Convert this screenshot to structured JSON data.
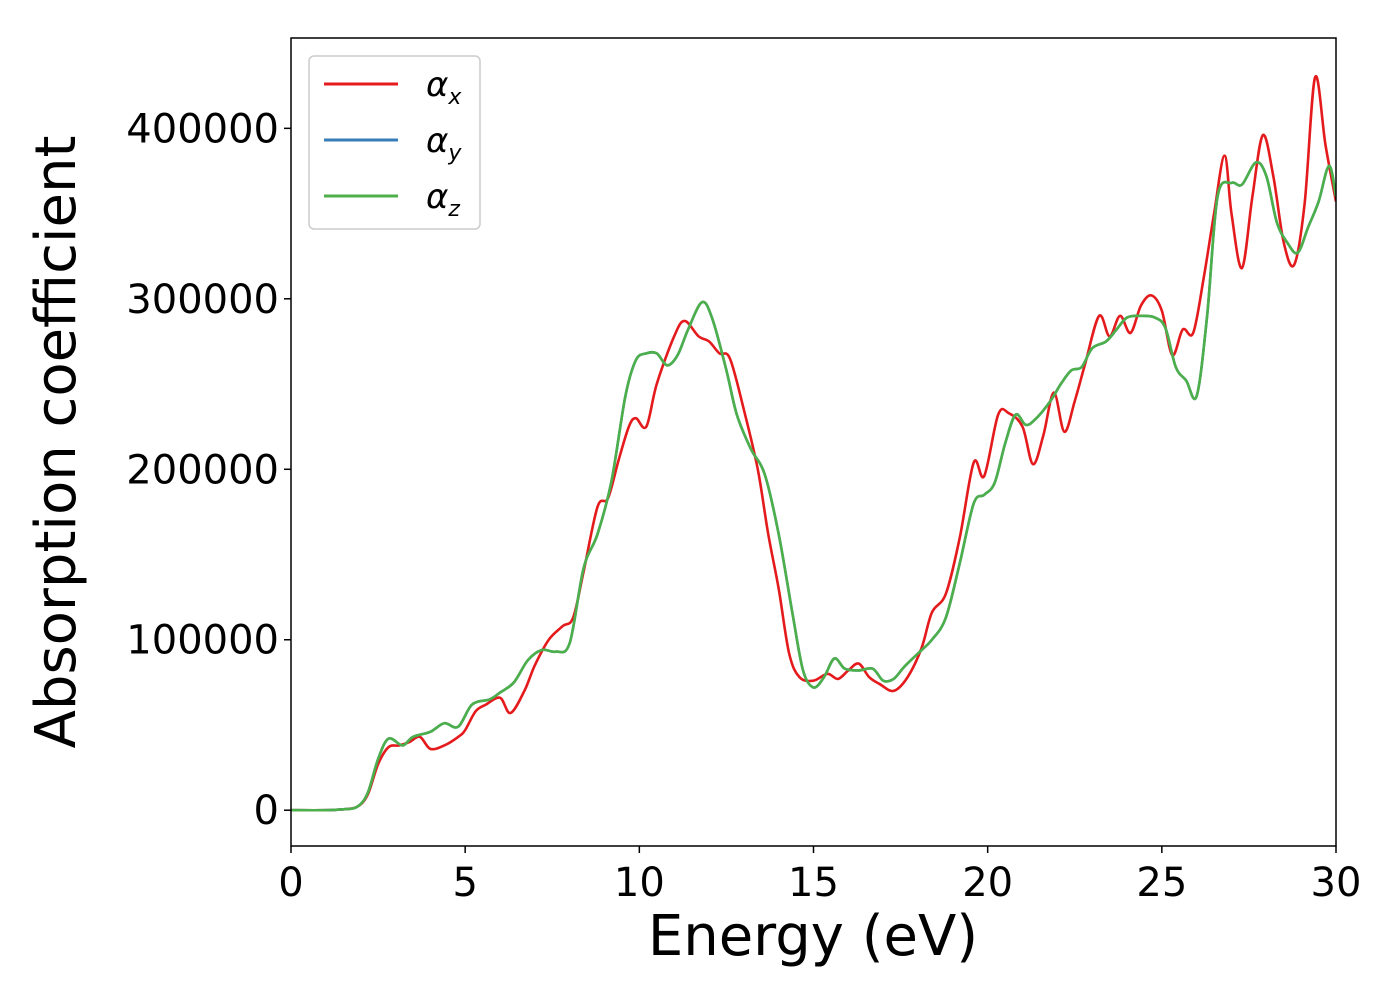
{
  "chart_data": {
    "type": "line",
    "xlabel": "Energy (eV)",
    "ylabel": "Absorption coefficient",
    "xlim": [
      0,
      30
    ],
    "ylim": [
      -21000,
      453000
    ],
    "xticks": [
      0,
      5,
      10,
      15,
      20,
      25,
      30
    ],
    "xtick_labels": [
      "0",
      "5",
      "10",
      "15",
      "20",
      "25",
      "30"
    ],
    "yticks": [
      0,
      100000,
      200000,
      300000,
      400000
    ],
    "ytick_labels": [
      "0",
      "100000",
      "200000",
      "300000",
      "400000"
    ],
    "grid": false,
    "legend_position": "top-left",
    "series": [
      {
        "name": "α",
        "subscript": "x",
        "color": "#e41a1c",
        "points": [
          [
            0,
            0
          ],
          [
            1,
            0
          ],
          [
            1.5,
            500
          ],
          [
            1.9,
            2000
          ],
          [
            2.2,
            9000
          ],
          [
            2.5,
            27000
          ],
          [
            2.8,
            37000
          ],
          [
            3.1,
            38000
          ],
          [
            3.4,
            40000
          ],
          [
            3.7,
            43000
          ],
          [
            4.0,
            36000
          ],
          [
            4.4,
            38000
          ],
          [
            4.8,
            43000
          ],
          [
            5.0,
            47000
          ],
          [
            5.3,
            58000
          ],
          [
            5.6,
            62000
          ],
          [
            6.0,
            66000
          ],
          [
            6.3,
            57000
          ],
          [
            6.7,
            70000
          ],
          [
            7.0,
            85000
          ],
          [
            7.4,
            100000
          ],
          [
            7.8,
            108000
          ],
          [
            8.1,
            113000
          ],
          [
            8.4,
            140000
          ],
          [
            8.8,
            178000
          ],
          [
            9.1,
            183000
          ],
          [
            9.4,
            205000
          ],
          [
            9.7,
            225000
          ],
          [
            9.9,
            230000
          ],
          [
            10.2,
            225000
          ],
          [
            10.5,
            250000
          ],
          [
            11.0,
            278000
          ],
          [
            11.3,
            287000
          ],
          [
            11.7,
            278000
          ],
          [
            12.0,
            275000
          ],
          [
            12.3,
            268000
          ],
          [
            12.6,
            265000
          ],
          [
            13.0,
            235000
          ],
          [
            13.4,
            200000
          ],
          [
            13.7,
            162000
          ],
          [
            14.0,
            130000
          ],
          [
            14.3,
            92000
          ],
          [
            14.6,
            78000
          ],
          [
            15.0,
            76000
          ],
          [
            15.4,
            80000
          ],
          [
            15.7,
            77000
          ],
          [
            16.0,
            82000
          ],
          [
            16.3,
            86000
          ],
          [
            16.6,
            78000
          ],
          [
            16.9,
            74000
          ],
          [
            17.3,
            70000
          ],
          [
            17.7,
            78000
          ],
          [
            18.1,
            95000
          ],
          [
            18.4,
            116000
          ],
          [
            18.8,
            127000
          ],
          [
            19.2,
            160000
          ],
          [
            19.6,
            204000
          ],
          [
            19.9,
            196000
          ],
          [
            20.3,
            232000
          ],
          [
            20.6,
            233000
          ],
          [
            21.0,
            225000
          ],
          [
            21.3,
            203000
          ],
          [
            21.6,
            220000
          ],
          [
            21.9,
            245000
          ],
          [
            22.2,
            222000
          ],
          [
            22.5,
            240000
          ],
          [
            22.8,
            262000
          ],
          [
            23.2,
            290000
          ],
          [
            23.5,
            278000
          ],
          [
            23.8,
            290000
          ],
          [
            24.1,
            280000
          ],
          [
            24.4,
            296000
          ],
          [
            24.7,
            302000
          ],
          [
            25.0,
            293000
          ],
          [
            25.3,
            267000
          ],
          [
            25.6,
            282000
          ],
          [
            25.9,
            280000
          ],
          [
            26.2,
            312000
          ],
          [
            26.5,
            350000
          ],
          [
            26.8,
            384000
          ],
          [
            27.0,
            350000
          ],
          [
            27.3,
            318000
          ],
          [
            27.6,
            360000
          ],
          [
            27.9,
            396000
          ],
          [
            28.2,
            372000
          ],
          [
            28.5,
            333000
          ],
          [
            28.8,
            320000
          ],
          [
            29.1,
            356000
          ],
          [
            29.4,
            430000
          ],
          [
            29.7,
            390000
          ],
          [
            30,
            357000
          ]
        ]
      },
      {
        "name": "α",
        "subscript": "y",
        "color": "#377eb8",
        "points": [
          [
            0,
            0
          ],
          [
            1,
            0
          ],
          [
            1.5,
            500
          ],
          [
            1.9,
            2000
          ],
          [
            2.2,
            10000
          ],
          [
            2.5,
            30000
          ],
          [
            2.8,
            42000
          ],
          [
            3.2,
            38000
          ],
          [
            3.5,
            43000
          ],
          [
            4.0,
            46000
          ],
          [
            4.4,
            51000
          ],
          [
            4.8,
            49000
          ],
          [
            5.2,
            62000
          ],
          [
            5.7,
            65000
          ],
          [
            6.0,
            69000
          ],
          [
            6.4,
            75000
          ],
          [
            6.8,
            88000
          ],
          [
            7.2,
            94000
          ],
          [
            7.6,
            93000
          ],
          [
            8.0,
            98000
          ],
          [
            8.4,
            142000
          ],
          [
            8.8,
            162000
          ],
          [
            9.2,
            193000
          ],
          [
            9.6,
            243000
          ],
          [
            9.9,
            264000
          ],
          [
            10.2,
            268000
          ],
          [
            10.5,
            268000
          ],
          [
            10.8,
            261000
          ],
          [
            11.1,
            267000
          ],
          [
            11.4,
            282000
          ],
          [
            11.8,
            298000
          ],
          [
            12.1,
            288000
          ],
          [
            12.5,
            258000
          ],
          [
            12.8,
            232000
          ],
          [
            13.2,
            212000
          ],
          [
            13.6,
            197000
          ],
          [
            14.0,
            162000
          ],
          [
            14.4,
            115000
          ],
          [
            14.7,
            82000
          ],
          [
            15.0,
            72000
          ],
          [
            15.3,
            78000
          ],
          [
            15.6,
            89000
          ],
          [
            15.9,
            83000
          ],
          [
            16.3,
            82000
          ],
          [
            16.7,
            83000
          ],
          [
            17.0,
            76000
          ],
          [
            17.3,
            77000
          ],
          [
            17.6,
            84000
          ],
          [
            18.0,
            92000
          ],
          [
            18.4,
            100000
          ],
          [
            18.8,
            113000
          ],
          [
            19.2,
            145000
          ],
          [
            19.6,
            180000
          ],
          [
            19.9,
            185000
          ],
          [
            20.2,
            192000
          ],
          [
            20.5,
            215000
          ],
          [
            20.8,
            232000
          ],
          [
            21.1,
            226000
          ],
          [
            21.4,
            230000
          ],
          [
            21.8,
            240000
          ],
          [
            22.1,
            250000
          ],
          [
            22.4,
            258000
          ],
          [
            22.7,
            260000
          ],
          [
            23.0,
            271000
          ],
          [
            23.4,
            275000
          ],
          [
            23.7,
            282000
          ],
          [
            24.0,
            289000
          ],
          [
            24.4,
            290000
          ],
          [
            24.8,
            289000
          ],
          [
            25.1,
            283000
          ],
          [
            25.4,
            260000
          ],
          [
            25.7,
            252000
          ],
          [
            26.0,
            243000
          ],
          [
            26.3,
            290000
          ],
          [
            26.6,
            360000
          ],
          [
            27.0,
            368000
          ],
          [
            27.3,
            367000
          ],
          [
            27.7,
            380000
          ],
          [
            28.0,
            372000
          ],
          [
            28.3,
            345000
          ],
          [
            28.6,
            333000
          ],
          [
            28.9,
            327000
          ],
          [
            29.2,
            342000
          ],
          [
            29.5,
            357000
          ],
          [
            29.8,
            378000
          ],
          [
            30,
            360000
          ]
        ]
      },
      {
        "name": "α",
        "subscript": "z",
        "color": "#4daf4a",
        "points": [
          [
            0,
            0
          ],
          [
            1,
            0
          ],
          [
            1.5,
            500
          ],
          [
            1.9,
            2000
          ],
          [
            2.2,
            10000
          ],
          [
            2.5,
            30000
          ],
          [
            2.8,
            42000
          ],
          [
            3.2,
            38000
          ],
          [
            3.5,
            43000
          ],
          [
            4.0,
            46000
          ],
          [
            4.4,
            51000
          ],
          [
            4.8,
            49000
          ],
          [
            5.2,
            62000
          ],
          [
            5.7,
            65000
          ],
          [
            6.0,
            69000
          ],
          [
            6.4,
            75000
          ],
          [
            6.8,
            88000
          ],
          [
            7.2,
            94000
          ],
          [
            7.6,
            93000
          ],
          [
            8.0,
            98000
          ],
          [
            8.4,
            142000
          ],
          [
            8.8,
            162000
          ],
          [
            9.2,
            193000
          ],
          [
            9.6,
            243000
          ],
          [
            9.9,
            264000
          ],
          [
            10.2,
            268000
          ],
          [
            10.5,
            268000
          ],
          [
            10.8,
            261000
          ],
          [
            11.1,
            267000
          ],
          [
            11.4,
            282000
          ],
          [
            11.8,
            298000
          ],
          [
            12.1,
            288000
          ],
          [
            12.5,
            258000
          ],
          [
            12.8,
            232000
          ],
          [
            13.2,
            212000
          ],
          [
            13.6,
            197000
          ],
          [
            14.0,
            162000
          ],
          [
            14.4,
            115000
          ],
          [
            14.7,
            82000
          ],
          [
            15.0,
            72000
          ],
          [
            15.3,
            78000
          ],
          [
            15.6,
            89000
          ],
          [
            15.9,
            83000
          ],
          [
            16.3,
            82000
          ],
          [
            16.7,
            83000
          ],
          [
            17.0,
            76000
          ],
          [
            17.3,
            77000
          ],
          [
            17.6,
            84000
          ],
          [
            18.0,
            92000
          ],
          [
            18.4,
            100000
          ],
          [
            18.8,
            113000
          ],
          [
            19.2,
            145000
          ],
          [
            19.6,
            180000
          ],
          [
            19.9,
            185000
          ],
          [
            20.2,
            192000
          ],
          [
            20.5,
            215000
          ],
          [
            20.8,
            232000
          ],
          [
            21.1,
            226000
          ],
          [
            21.4,
            230000
          ],
          [
            21.8,
            240000
          ],
          [
            22.1,
            250000
          ],
          [
            22.4,
            258000
          ],
          [
            22.7,
            260000
          ],
          [
            23.0,
            271000
          ],
          [
            23.4,
            275000
          ],
          [
            23.7,
            282000
          ],
          [
            24.0,
            289000
          ],
          [
            24.4,
            290000
          ],
          [
            24.8,
            289000
          ],
          [
            25.1,
            283000
          ],
          [
            25.4,
            260000
          ],
          [
            25.7,
            252000
          ],
          [
            26.0,
            243000
          ],
          [
            26.3,
            290000
          ],
          [
            26.6,
            360000
          ],
          [
            27.0,
            368000
          ],
          [
            27.3,
            367000
          ],
          [
            27.7,
            380000
          ],
          [
            28.0,
            372000
          ],
          [
            28.3,
            345000
          ],
          [
            28.6,
            333000
          ],
          [
            28.9,
            327000
          ],
          [
            29.2,
            342000
          ],
          [
            29.5,
            357000
          ],
          [
            29.8,
            378000
          ],
          [
            30,
            360000
          ]
        ]
      }
    ]
  }
}
